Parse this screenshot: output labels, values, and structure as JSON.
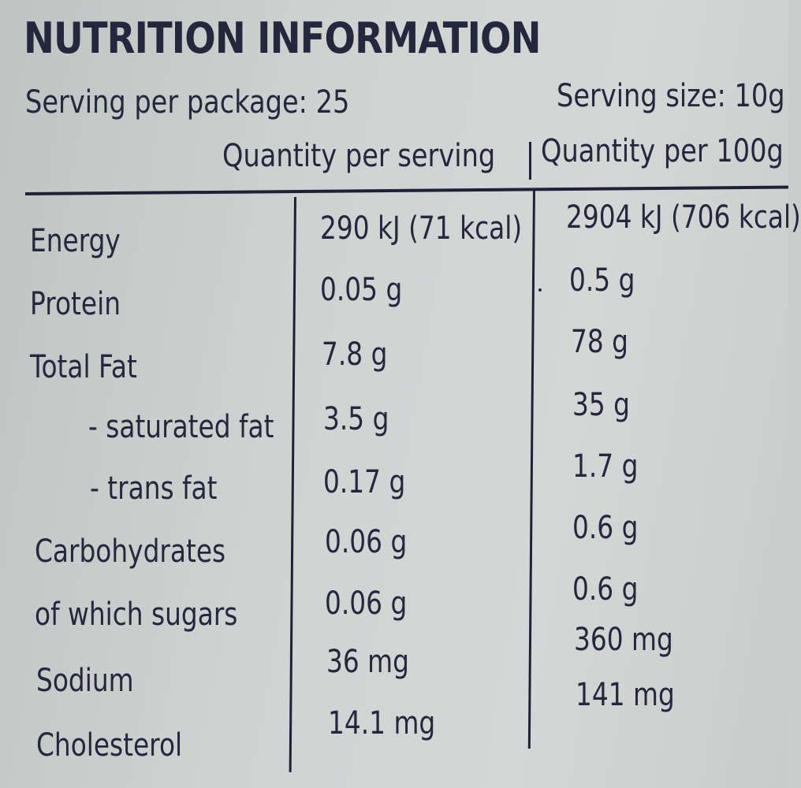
{
  "title": "NUTRITION INFORMATION",
  "serving_per_package": "Serving per package: 25",
  "serving_size": "Serving size: 10g",
  "columns": {
    "per_serving": "Quantity per serving",
    "per_100g": "Quantity per 100g"
  },
  "rows": [
    {
      "name": "Energy",
      "per_serving": "290 kJ (71 kcal)",
      "per_100g": "2904 kJ (706 kcal)"
    },
    {
      "name": "Protein",
      "per_serving": "0.05 g",
      "per_100g": "0.5 g"
    },
    {
      "name": "Total Fat",
      "per_serving": "7.8 g",
      "per_100g": "78 g"
    },
    {
      "name": "- saturated fat",
      "per_serving": "3.5 g",
      "per_100g": "35 g"
    },
    {
      "name": "- trans fat",
      "per_serving": "0.17 g",
      "per_100g": "1.7 g"
    },
    {
      "name": "Carbohydrates",
      "per_serving": "0.06 g",
      "per_100g": "0.6 g"
    },
    {
      "name": "of which sugars",
      "per_serving": "0.06 g",
      "per_100g": "0.6 g"
    },
    {
      "name": "Sodium",
      "per_serving": "36 mg",
      "per_100g": "360 mg"
    },
    {
      "name": "Cholesterol",
      "per_serving": "14.1 mg",
      "per_100g": "141 mg"
    }
  ]
}
